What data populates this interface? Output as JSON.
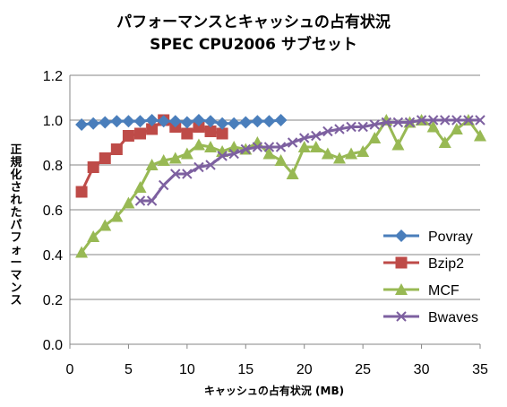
{
  "chart_data": {
    "type": "line",
    "title": "パフォーマンスとキャッシュの占有状況",
    "subtitle": "SPEC CPU2006 サブセット",
    "xlabel": "キャッシュの占有状況 (MB)",
    "ylabel": "正規化されたパフォーマンス",
    "xlim": [
      0,
      35
    ],
    "ylim": [
      0,
      1.2
    ],
    "xticks": [
      "0",
      "5",
      "10",
      "15",
      "20",
      "25",
      "30",
      "35"
    ],
    "yticks": [
      "0.0",
      "0.2",
      "0.4",
      "0.6",
      "0.8",
      "1.0",
      "1.2"
    ],
    "grid": "horizontal",
    "legend_position": "bottom-right",
    "series": [
      {
        "name": "Povray",
        "color": "#4a7ebb",
        "marker": "diamond",
        "x": [
          1,
          2,
          3,
          4,
          5,
          6,
          7,
          8,
          9,
          10,
          11,
          12,
          13,
          14,
          15,
          16,
          17,
          18
        ],
        "y": [
          0.98,
          0.985,
          0.99,
          0.995,
          0.995,
          0.995,
          1.0,
          0.995,
          0.995,
          0.99,
          1.0,
          0.995,
          0.985,
          0.985,
          0.99,
          0.995,
          0.995,
          1.0
        ]
      },
      {
        "name": "Bzip2",
        "color": "#be4b48",
        "marker": "square",
        "x": [
          1,
          2,
          3,
          4,
          5,
          6,
          7,
          8,
          9,
          10,
          11,
          12,
          13
        ],
        "y": [
          0.68,
          0.79,
          0.83,
          0.87,
          0.93,
          0.94,
          0.96,
          1.0,
          0.97,
          0.94,
          0.97,
          0.95,
          0.94
        ]
      },
      {
        "name": "MCF",
        "color": "#98b954",
        "marker": "triangle",
        "x": [
          1,
          2,
          3,
          4,
          5,
          6,
          7,
          8,
          9,
          10,
          11,
          12,
          13,
          14,
          15,
          16,
          17,
          18,
          19,
          20,
          21,
          22,
          23,
          24,
          25,
          26,
          27,
          28,
          29,
          30,
          31,
          32,
          33,
          34,
          35
        ],
        "y": [
          0.41,
          0.48,
          0.53,
          0.57,
          0.63,
          0.7,
          0.8,
          0.82,
          0.83,
          0.85,
          0.89,
          0.88,
          0.86,
          0.88,
          0.87,
          0.9,
          0.85,
          0.82,
          0.76,
          0.88,
          0.88,
          0.85,
          0.83,
          0.85,
          0.86,
          0.92,
          1.0,
          0.89,
          0.99,
          1.0,
          0.97,
          0.9,
          0.96,
          1.0,
          0.93
        ]
      },
      {
        "name": "Bwaves",
        "color": "#7d60a0",
        "marker": "x",
        "x": [
          6,
          7,
          8,
          9,
          10,
          11,
          12,
          13,
          14,
          15,
          16,
          17,
          18,
          19,
          20,
          21,
          22,
          23,
          24,
          25,
          26,
          27,
          28,
          29,
          30,
          31,
          32,
          33,
          34,
          35
        ],
        "y": [
          0.64,
          0.64,
          0.71,
          0.76,
          0.76,
          0.79,
          0.8,
          0.84,
          0.85,
          0.87,
          0.88,
          0.88,
          0.88,
          0.9,
          0.92,
          0.93,
          0.95,
          0.96,
          0.97,
          0.97,
          0.98,
          0.99,
          0.99,
          0.99,
          1.0,
          1.0,
          1.0,
          1.0,
          1.0,
          1.0
        ]
      }
    ]
  }
}
